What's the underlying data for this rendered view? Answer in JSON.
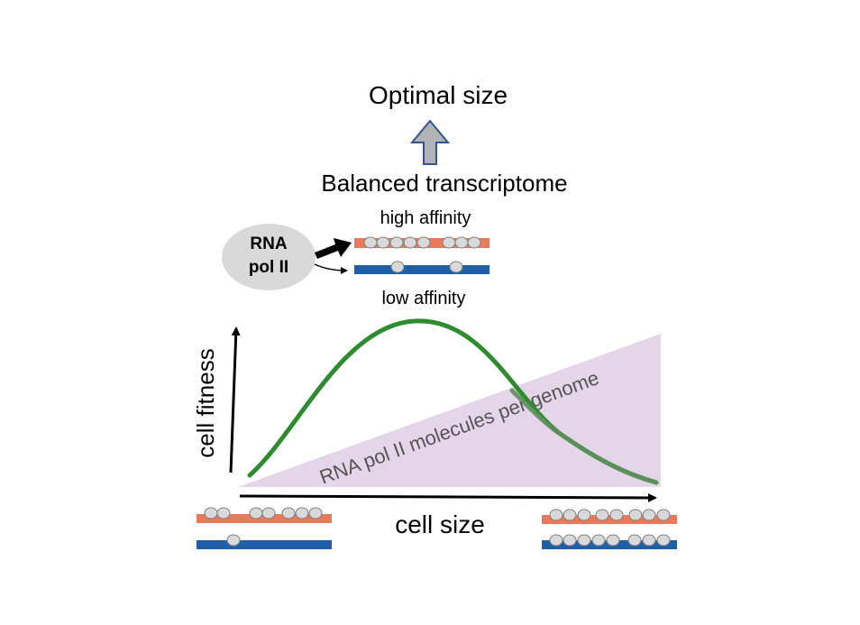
{
  "title": "Optimal size",
  "subtitle": "Balanced transcriptome",
  "polymerase": {
    "line1": "RNA",
    "line2": "pol II"
  },
  "high_label": "high affinity",
  "low_label": "low affinity",
  "y_axis_label": "cell fitness",
  "x_axis_label": "cell size",
  "triangle_label": "RNA pol II molecules  per genome",
  "colors": {
    "high_affinity_gene": "#e8795b",
    "low_affinity_gene": "#1f5fa6",
    "fitness_curve": "#2e8b2e",
    "triangle_fill": "#e4d5e8",
    "bead_fill": "#d9d9d9",
    "arrow_fill": "#b3b3b3",
    "arrow_outline": "#2f5597"
  }
}
